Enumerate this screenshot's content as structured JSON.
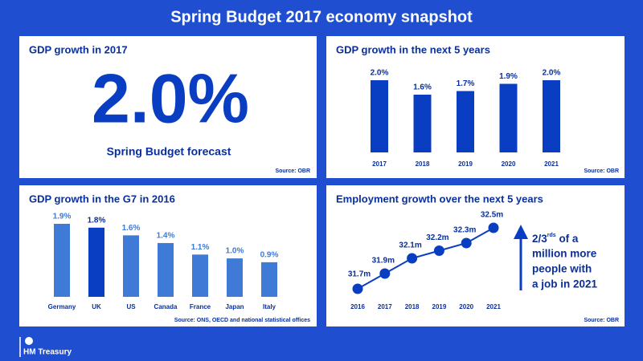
{
  "title": "Spring Budget 2017 economy snapshot",
  "headline": {
    "title": "GDP growth in 2017",
    "value": "2.0%",
    "caption": "Spring Budget forecast",
    "source": "Source: OBR"
  },
  "chart_data": [
    {
      "type": "bar",
      "title": "GDP growth in the next 5 years",
      "categories": [
        "2017",
        "2018",
        "2019",
        "2020",
        "2021"
      ],
      "values": [
        2.0,
        1.6,
        1.7,
        1.9,
        2.0
      ],
      "value_labels": [
        "2.0%",
        "1.6%",
        "1.7%",
        "1.9%",
        "2.0%"
      ],
      "colors": [
        "#0a3ec2",
        "#0a3ec2",
        "#0a3ec2",
        "#0a3ec2",
        "#0a3ec2"
      ],
      "source": "Source: OBR"
    },
    {
      "type": "bar",
      "title": "GDP growth in the G7 in 2016",
      "categories": [
        "Germany",
        "UK",
        "US",
        "Canada",
        "France",
        "Japan",
        "Italy"
      ],
      "values": [
        1.9,
        1.8,
        1.6,
        1.4,
        1.1,
        1.0,
        0.9
      ],
      "value_labels": [
        "1.9%",
        "1.8%",
        "1.6%",
        "1.4%",
        "1.1%",
        "1.0%",
        "0.9%"
      ],
      "colors": [
        "#3f7ad6",
        "#0a3ec2",
        "#3f7ad6",
        "#3f7ad6",
        "#3f7ad6",
        "#3f7ad6",
        "#3f7ad6"
      ],
      "source": "Source: ONS, OECD and national statistical offices"
    },
    {
      "type": "line",
      "title": "Employment growth over the next 5 years",
      "categories": [
        "2016",
        "2017",
        "2018",
        "2019",
        "2020",
        "2021"
      ],
      "values": [
        31.7,
        31.9,
        32.1,
        32.2,
        32.3,
        32.5
      ],
      "value_labels": [
        "31.7m",
        "31.9m",
        "32.1m",
        "32.2m",
        "32.3m",
        "32.5m"
      ],
      "color": "#0a3ec2",
      "annotation": {
        "fraction": "2/3",
        "fraction_suffix": "rds",
        "lines": [
          "of a",
          "million more",
          "people with",
          "a job in 2021"
        ]
      },
      "source": "Source: OBR"
    }
  ],
  "logo": "HM Treasury"
}
